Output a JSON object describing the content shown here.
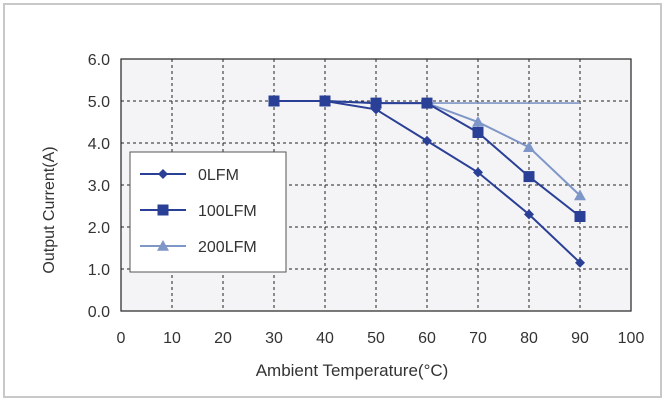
{
  "chart_data": {
    "type": "line",
    "title": "",
    "xlabel": "Ambient Temperature(°C)",
    "ylabel": "Output Current(A)",
    "xlim": [
      0,
      100
    ],
    "ylim": [
      0,
      6
    ],
    "x_ticks": [
      0,
      10,
      20,
      30,
      40,
      50,
      60,
      70,
      80,
      90,
      100
    ],
    "y_ticks": [
      "0.0",
      "1.0",
      "2.0",
      "3.0",
      "4.0",
      "5.0",
      "6.0"
    ],
    "grid": true,
    "grid_style": "dashed",
    "legend_position": "left",
    "colors": {
      "frame": "#c8c8c8",
      "plot_bg": "#f4f4f6",
      "grid": "#222222",
      "dark_blue": "#2a3f96",
      "light_blue": "#7f96c8"
    },
    "series": [
      {
        "name": "0LFM",
        "marker": "diamond",
        "color": "#2a3f96",
        "x": [
          30,
          40,
          50,
          60,
          70,
          80,
          90
        ],
        "y": [
          5.0,
          5.0,
          4.8,
          4.05,
          3.3,
          2.3,
          1.15
        ]
      },
      {
        "name": "100LFM",
        "marker": "square",
        "color": "#2a3f96",
        "x": [
          30,
          40,
          50,
          60,
          70,
          80,
          90
        ],
        "y": [
          5.0,
          5.0,
          4.95,
          4.95,
          4.25,
          3.2,
          2.25
        ]
      },
      {
        "name": "200LFM",
        "marker": "triangle",
        "color": "#7f96c8",
        "x": [
          30,
          40,
          50,
          60,
          70,
          80,
          90
        ],
        "y": [
          5.0,
          5.0,
          4.95,
          4.95,
          4.5,
          3.9,
          2.75
        ]
      }
    ],
    "reference_line": {
      "y": 4.95,
      "x": [
        60,
        90
      ],
      "color": "#7f96c8"
    }
  }
}
